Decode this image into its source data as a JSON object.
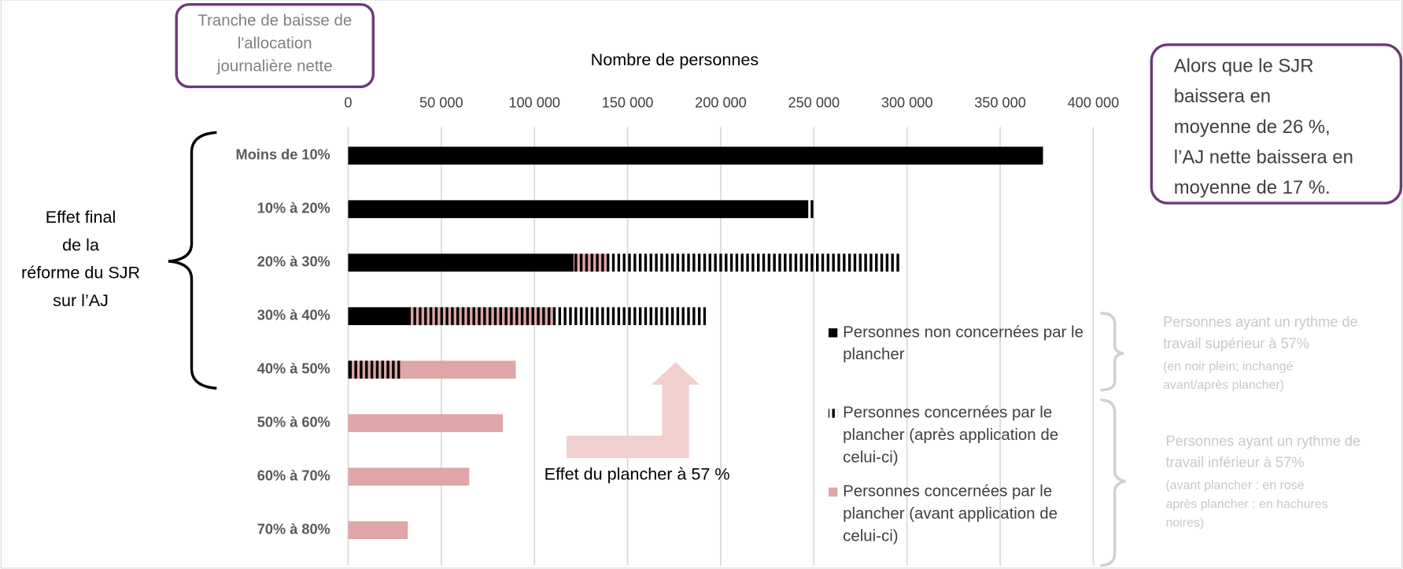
{
  "chart_data": {
    "type": "bar",
    "orientation": "horizontal",
    "x_label": "Nombre de personnes",
    "categories": [
      "Moins de 10%",
      "10% à 20%",
      "20% à 30%",
      "30% à 40%",
      "40% à 50%",
      "50% à 60%",
      "60% à 70%",
      "70% à 80%"
    ],
    "series": [
      {
        "name": "Personnes non concernées par le plancher",
        "color": "#000000",
        "overlay": false,
        "values": [
          373000,
          247000,
          121000,
          33000,
          2000,
          0,
          0,
          0
        ]
      },
      {
        "name": "Personnes concernées par le plancher (avant application de celui-ci)",
        "color": "#dea6a6",
        "overlay": true,
        "values": [
          0,
          0,
          19000,
          78000,
          88000,
          83000,
          65000,
          32000
        ]
      },
      {
        "name": "Personnes concernées par le plancher (après application de celui-ci)",
        "color": "#000000",
        "hatch": true,
        "overlay": true,
        "values": [
          0,
          4000,
          176000,
          159000,
          27000,
          0,
          0,
          0
        ]
      }
    ],
    "xlim": [
      0,
      400000
    ],
    "xticks": [
      0,
      {
        "value": 50000,
        "label": "50 000"
      },
      {
        "value": 100000,
        "label": "100 000"
      },
      {
        "value": 150000,
        "label": "150 000"
      },
      {
        "value": 200000,
        "label": "200 000"
      },
      {
        "value": 250000,
        "label": "250 000"
      },
      {
        "value": 300000,
        "label": "300 000"
      },
      {
        "value": 350000,
        "label": "350 000"
      },
      {
        "value": 400000,
        "label": "400 000"
      }
    ],
    "grid": true,
    "category_axis_label": [
      "Tranche de baisse de",
      "l'allocation",
      "journalière nette"
    ],
    "annotations": {
      "left_brace": [
        "Effet final",
        "de la",
        "réforme du SJR",
        "sur l’AJ"
      ],
      "arrow": "Effet du plancher à 57 %",
      "box": [
        "Alors que le SJR",
        "baissera en",
        "moyenne de 26 %,",
        "l’AJ nette baissera en",
        "moyenne de 17 %."
      ],
      "note_upper": [
        "Personnes ayant un rythme de",
        "travail supérieur à 57%"
      ],
      "note_upper_small": [
        "(en noir plein; inchangé",
        "avant/après plancher)"
      ],
      "note_lower": [
        "Personnes ayant un rythme de",
        "travail inférieur à 57%"
      ],
      "note_lower_small": [
        "(avant plancher : en rose",
        "après plancher : en hachures",
        "noires)"
      ]
    },
    "legend_lines": [
      [
        "Personnes non concernées par le",
        "plancher"
      ],
      [
        "Personnes concernées par le",
        "plancher (après application de",
        "celui-ci)"
      ],
      [
        "Personnes concernées par le",
        "plancher (avant application de",
        "celui-ci)"
      ]
    ]
  }
}
